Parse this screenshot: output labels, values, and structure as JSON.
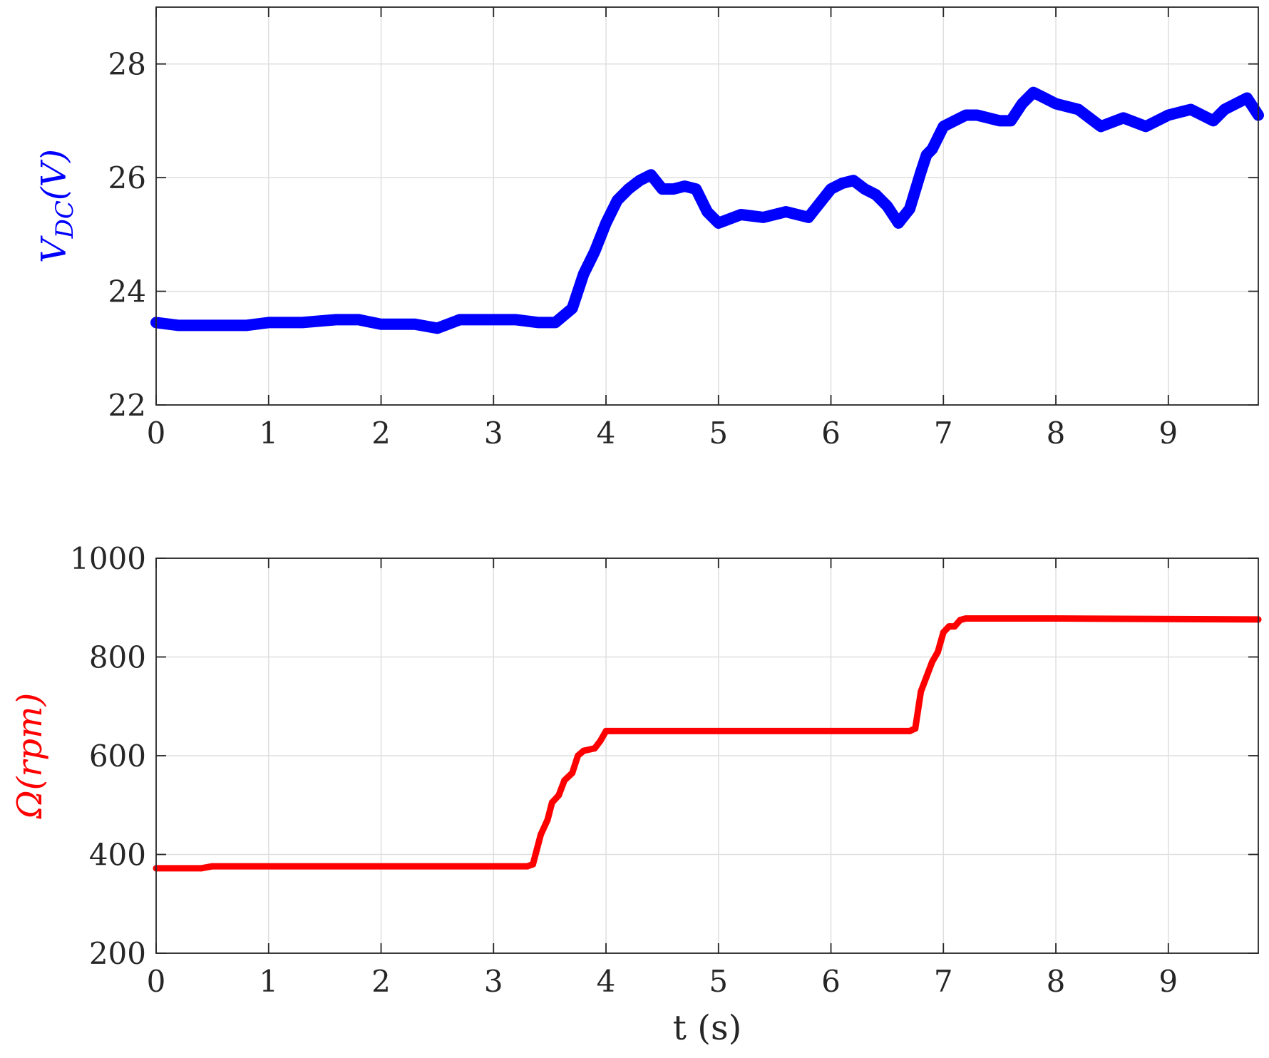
{
  "chart_data": [
    {
      "type": "line",
      "ylabel": {
        "main": "V",
        "sub": "DC",
        "unit": "(V)"
      },
      "ylabel_color": "#0000ff",
      "xlim": [
        0,
        9.8
      ],
      "ylim": [
        22,
        29
      ],
      "xticks": [
        "0",
        "1",
        "2",
        "3",
        "4",
        "5",
        "6",
        "7",
        "8",
        "9"
      ],
      "yticks": [
        "22",
        "24",
        "26",
        "28"
      ],
      "grid": true,
      "series": [
        {
          "color": "#0000ff",
          "x": [
            0,
            0.2,
            0.5,
            0.8,
            1.0,
            1.3,
            1.6,
            1.8,
            2.0,
            2.3,
            2.5,
            2.7,
            3.0,
            3.2,
            3.4,
            3.55,
            3.7,
            3.8,
            3.9,
            4.0,
            4.1,
            4.2,
            4.3,
            4.4,
            4.5,
            4.6,
            4.7,
            4.8,
            4.9,
            5.0,
            5.2,
            5.4,
            5.6,
            5.8,
            6.0,
            6.1,
            6.2,
            6.3,
            6.4,
            6.5,
            6.6,
            6.7,
            6.8,
            6.85,
            6.9,
            7.0,
            7.1,
            7.2,
            7.3,
            7.5,
            7.6,
            7.7,
            7.8,
            7.9,
            8.0,
            8.2,
            8.4,
            8.6,
            8.8,
            9.0,
            9.2,
            9.4,
            9.5,
            9.6,
            9.7,
            9.8
          ],
          "y": [
            23.45,
            23.4,
            23.4,
            23.4,
            23.45,
            23.45,
            23.5,
            23.5,
            23.42,
            23.42,
            23.35,
            23.5,
            23.5,
            23.5,
            23.45,
            23.45,
            23.7,
            24.3,
            24.7,
            25.2,
            25.6,
            25.8,
            25.95,
            26.05,
            25.8,
            25.8,
            25.85,
            25.8,
            25.4,
            25.2,
            25.35,
            25.3,
            25.4,
            25.3,
            25.8,
            25.9,
            25.95,
            25.8,
            25.7,
            25.5,
            25.2,
            25.45,
            26.1,
            26.4,
            26.5,
            26.9,
            27.0,
            27.1,
            27.1,
            27.0,
            27.0,
            27.3,
            27.5,
            27.4,
            27.3,
            27.2,
            26.9,
            27.05,
            26.9,
            27.1,
            27.2,
            27.0,
            27.2,
            27.3,
            27.4,
            27.1
          ]
        }
      ]
    },
    {
      "type": "line",
      "xlabel": "t (s)",
      "ylabel": "Ω(rpm)",
      "ylabel_color": "#ff0000",
      "xlim": [
        0,
        9.8
      ],
      "ylim": [
        200,
        1000
      ],
      "xticks": [
        "0",
        "1",
        "2",
        "3",
        "4",
        "5",
        "6",
        "7",
        "8",
        "9"
      ],
      "yticks": [
        "200",
        "400",
        "600",
        "800",
        "1000"
      ],
      "grid": true,
      "series": [
        {
          "color": "#ff0000",
          "x": [
            0,
            0.4,
            0.5,
            3.3,
            3.35,
            3.42,
            3.48,
            3.52,
            3.58,
            3.63,
            3.7,
            3.75,
            3.8,
            3.9,
            3.95,
            4.0,
            4.05,
            6.7,
            6.75,
            6.8,
            6.85,
            6.9,
            6.95,
            7.0,
            7.05,
            7.1,
            7.15,
            7.2,
            7.25,
            8.0,
            9.8
          ],
          "y": [
            372,
            372,
            376,
            376,
            380,
            440,
            470,
            505,
            520,
            550,
            565,
            600,
            610,
            615,
            630,
            650,
            650,
            650,
            655,
            730,
            760,
            790,
            810,
            850,
            862,
            862,
            875,
            878,
            878,
            878,
            876
          ]
        }
      ]
    }
  ]
}
